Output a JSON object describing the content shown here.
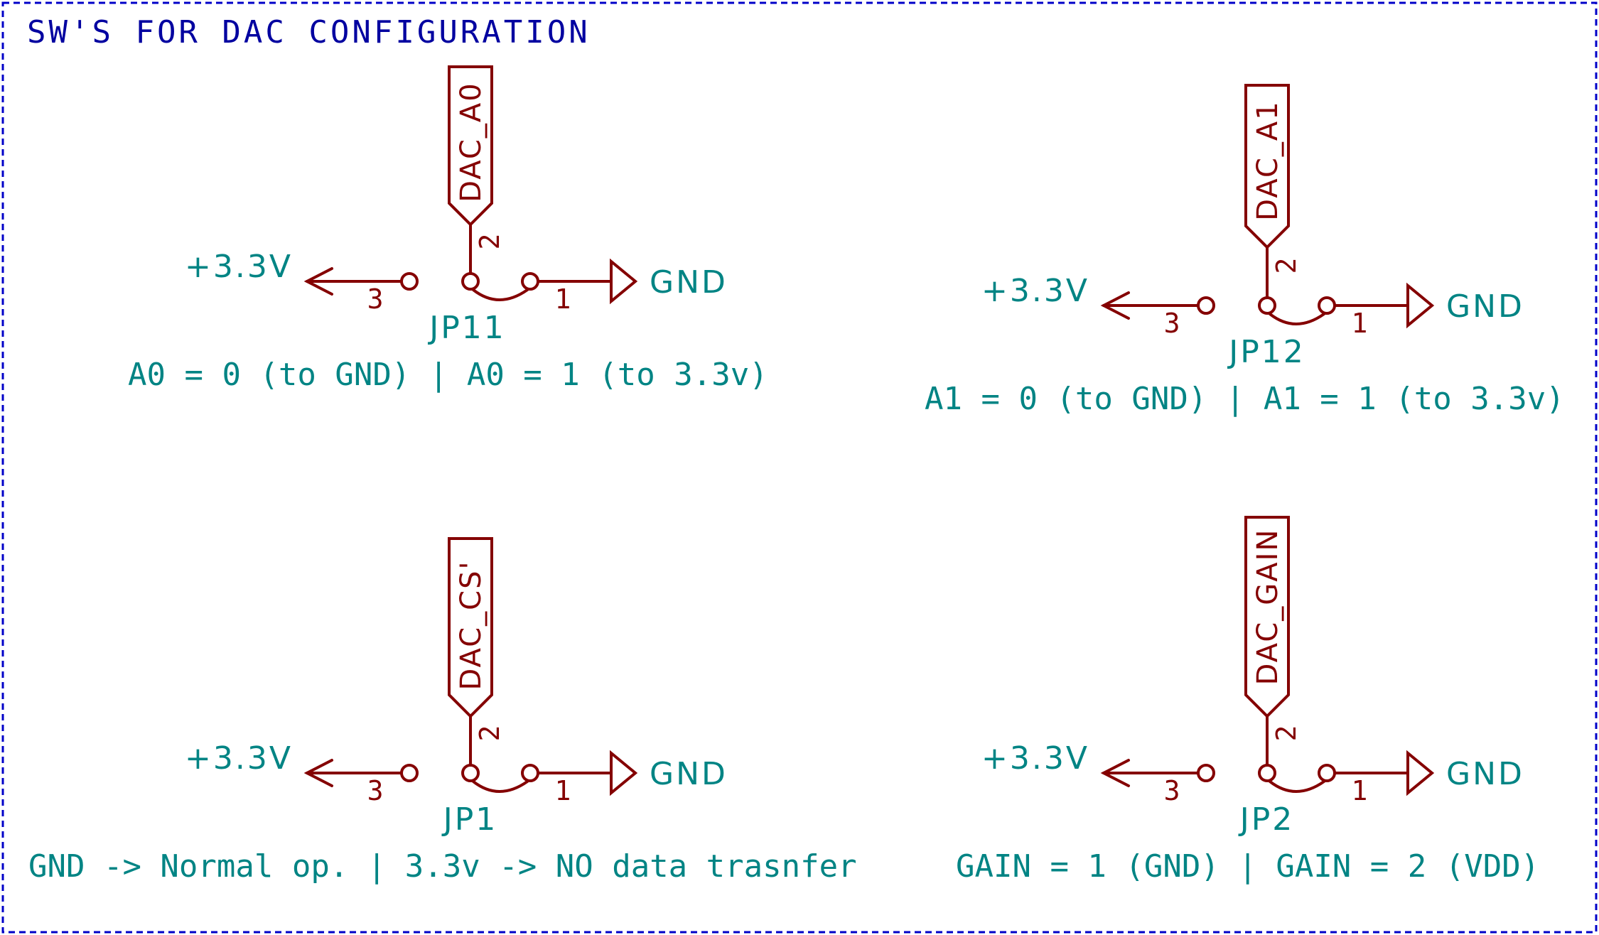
{
  "title": "SW'S FOR DAC CONFIGURATION",
  "colors": {
    "frame": "#0000c8",
    "title": "#0000a0",
    "symbol": "#840000",
    "text": "#008484"
  },
  "jumpers": [
    {
      "ref": "JP11",
      "net": "DAC_A0",
      "power_label": "+3.3V",
      "ground_label": "GND",
      "pins": [
        "1",
        "2",
        "3"
      ],
      "note": "A0 = 0 (to GND) | A0 = 1 (to 3.3v)"
    },
    {
      "ref": "JP12",
      "net": "DAC_A1",
      "power_label": "+3.3V",
      "ground_label": "GND",
      "pins": [
        "1",
        "2",
        "3"
      ],
      "note": "A1 = 0 (to GND) | A1 = 1 (to 3.3v)"
    },
    {
      "ref": "JP1",
      "net": "DAC_CS'",
      "power_label": "+3.3V",
      "ground_label": "GND",
      "pins": [
        "1",
        "2",
        "3"
      ],
      "note": "GND -> Normal op. | 3.3v -> NO data trasnfer"
    },
    {
      "ref": "JP2",
      "net": "DAC_GAIN",
      "power_label": "+3.3V",
      "ground_label": "GND",
      "pins": [
        "1",
        "2",
        "3"
      ],
      "note": "GAIN = 1 (GND) | GAIN = 2 (VDD)"
    }
  ]
}
